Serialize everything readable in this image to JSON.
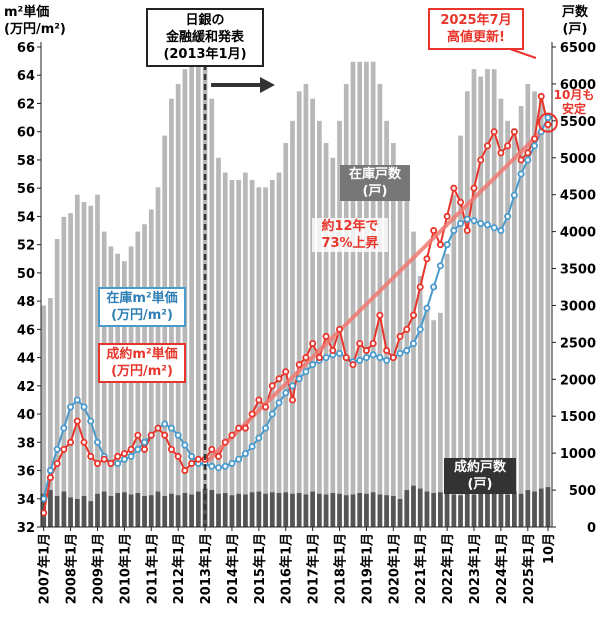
{
  "chart_data": {
    "type": "combo",
    "y_label": [
      "m²単価",
      "(万円/m²)"
    ],
    "y2_label": [
      "戸数",
      "(戸)"
    ],
    "xlim": [
      2006.9,
      2025.9
    ],
    "xticks": [
      {
        "value": 2007,
        "label": "2007年1月"
      },
      {
        "value": 2008,
        "label": "2008年1月"
      },
      {
        "value": 2009,
        "label": "2009年1月"
      },
      {
        "value": 2010,
        "label": "2010年1月"
      },
      {
        "value": 2011,
        "label": "2011年1月"
      },
      {
        "value": 2012,
        "label": "2012年1月"
      },
      {
        "value": 2013,
        "label": "2013年1月"
      },
      {
        "value": 2014,
        "label": "2014年1月"
      },
      {
        "value": 2015,
        "label": "2015年1月"
      },
      {
        "value": 2016,
        "label": "2016年1月"
      },
      {
        "value": 2017,
        "label": "2017年1月"
      },
      {
        "value": 2018,
        "label": "2018年1月"
      },
      {
        "value": 2019,
        "label": "2019年1月"
      },
      {
        "value": 2020,
        "label": "2020年1月"
      },
      {
        "value": 2021,
        "label": "2021年1月"
      },
      {
        "value": 2022,
        "label": "2022年1月"
      },
      {
        "value": 2023,
        "label": "2023年1月"
      },
      {
        "value": 2024,
        "label": "2024年1月"
      },
      {
        "value": 2025,
        "label": "2025年1月"
      },
      {
        "value": 2025.75,
        "label": "10月"
      }
    ],
    "ylim": [
      32,
      66
    ],
    "yticks": [
      32,
      34,
      36,
      38,
      40,
      42,
      44,
      46,
      48,
      50,
      52,
      54,
      56,
      58,
      60,
      62,
      64,
      66
    ],
    "y2lim": [
      0,
      6500
    ],
    "y2ticks": [
      0,
      500,
      1000,
      1500,
      2000,
      2500,
      3000,
      3500,
      4000,
      4500,
      5000,
      5500,
      6000,
      6500
    ],
    "x": [
      2007,
      2007.25,
      2007.5,
      2007.75,
      2008,
      2008.25,
      2008.5,
      2008.75,
      2009,
      2009.25,
      2009.5,
      2009.75,
      2010,
      2010.25,
      2010.5,
      2010.75,
      2011,
      2011.25,
      2011.5,
      2011.75,
      2012,
      2012.25,
      2012.5,
      2012.75,
      2013,
      2013.25,
      2013.5,
      2013.75,
      2014,
      2014.25,
      2014.5,
      2014.75,
      2015,
      2015.25,
      2015.5,
      2015.75,
      2016,
      2016.25,
      2016.5,
      2016.75,
      2017,
      2017.25,
      2017.5,
      2017.75,
      2018,
      2018.25,
      2018.5,
      2018.75,
      2019,
      2019.25,
      2019.5,
      2019.75,
      2020,
      2020.25,
      2020.5,
      2020.75,
      2021,
      2021.25,
      2021.5,
      2021.75,
      2022,
      2022.25,
      2022.5,
      2022.75,
      2023,
      2023.25,
      2023.5,
      2023.75,
      2024,
      2024.25,
      2024.5,
      2024.75,
      2025,
      2025.25,
      2025.5,
      2025.75
    ],
    "series": [
      {
        "name": [
          "在庫戸数",
          "(戸)"
        ],
        "type": "bar",
        "axis": "y2",
        "color": "#b8b8b8",
        "values": [
          3000,
          3100,
          3900,
          4200,
          4250,
          4500,
          4400,
          4350,
          4500,
          4000,
          3800,
          3700,
          3600,
          3800,
          4000,
          4100,
          4300,
          4600,
          5300,
          5800,
          6000,
          6200,
          6250,
          6300,
          6300,
          5800,
          5000,
          4800,
          4700,
          4700,
          4800,
          4700,
          4600,
          4600,
          4700,
          4800,
          5200,
          5500,
          5900,
          6000,
          5800,
          5500,
          5200,
          5000,
          5500,
          6000,
          6300,
          6300,
          6300,
          6300,
          6000,
          5500,
          5200,
          4900,
          4600,
          4000,
          3400,
          3000,
          2800,
          2900,
          3700,
          4500,
          5300,
          5900,
          6200,
          6100,
          6200,
          6200,
          5800,
          5500,
          5400,
          5700,
          6000,
          5900,
          5800,
          5600
        ]
      },
      {
        "name": [
          "成約戸数",
          "(戸)"
        ],
        "type": "bar",
        "axis": "y2",
        "color": "#555555",
        "values": [
          450,
          500,
          420,
          480,
          400,
          380,
          420,
          350,
          450,
          480,
          420,
          460,
          470,
          440,
          460,
          420,
          430,
          480,
          420,
          450,
          430,
          460,
          440,
          480,
          520,
          500,
          450,
          460,
          430,
          450,
          440,
          470,
          480,
          450,
          470,
          460,
          470,
          450,
          460,
          440,
          480,
          450,
          440,
          460,
          450,
          430,
          440,
          460,
          450,
          470,
          440,
          430,
          420,
          380,
          500,
          560,
          520,
          480,
          460,
          470,
          460,
          440,
          430,
          450,
          440,
          460,
          450,
          470,
          460,
          440,
          480,
          450,
          500,
          480,
          520,
          540
        ]
      },
      {
        "name": [
          "在庫m²単価",
          "(万円/m²)"
        ],
        "type": "line",
        "color": "#4a9acb",
        "values": [
          34,
          36,
          37.5,
          39,
          40.5,
          41,
          40.5,
          39.5,
          38,
          37,
          36.5,
          36.5,
          36.8,
          37,
          37.5,
          38,
          38.5,
          39,
          39.3,
          39,
          38.5,
          37.8,
          37,
          36.5,
          36.5,
          36.3,
          36.2,
          36.3,
          36.5,
          36.8,
          37.2,
          37.7,
          38.3,
          39,
          40,
          40.8,
          41.5,
          42,
          42.5,
          43,
          43.5,
          43.8,
          44,
          44.2,
          44.3,
          44,
          43.7,
          43.8,
          44,
          44.2,
          44,
          43.8,
          44,
          44.3,
          44.5,
          45,
          46,
          47.5,
          49,
          50.5,
          52,
          53,
          53.5,
          53.8,
          53.7,
          53.5,
          53.4,
          53.2,
          53,
          54,
          55.5,
          57,
          58,
          59,
          60,
          61
        ]
      },
      {
        "name": [
          "成約m²単価",
          "(万円/m²)"
        ],
        "type": "line",
        "color": "#e8352b",
        "values": [
          33,
          35.5,
          36.5,
          37.5,
          38,
          39.5,
          38,
          37,
          36.5,
          36.8,
          36.5,
          37,
          37.2,
          37.5,
          38.5,
          37.5,
          38.5,
          39,
          38.5,
          37.5,
          37,
          36,
          36.5,
          36.8,
          36.8,
          37.5,
          37,
          38,
          38.5,
          39,
          39,
          40,
          41,
          40.5,
          42,
          42.5,
          43,
          41,
          43.5,
          44,
          45,
          44,
          45.5,
          44.5,
          46,
          44,
          43.5,
          45,
          44.5,
          45,
          47,
          44.5,
          44,
          45.5,
          46,
          47,
          49,
          51,
          53,
          52,
          54,
          56,
          55,
          53,
          56,
          58,
          59,
          60,
          58.5,
          59,
          60,
          58,
          58.5,
          59.5,
          62.5,
          60.5
        ]
      }
    ],
    "trend": {
      "color": "#f07a72",
      "x": [
        2013,
        2025.5
      ],
      "values": [
        36.5,
        60
      ]
    },
    "event": {
      "x": 2013,
      "lines": [
        "日銀の",
        "金融緩和発表",
        "(2013年1月)"
      ]
    },
    "notes": [
      [
        "約12年で",
        "73%上昇"
      ],
      [
        "2025年7月",
        "高値更新!"
      ],
      [
        "10月も",
        "安定"
      ]
    ]
  }
}
